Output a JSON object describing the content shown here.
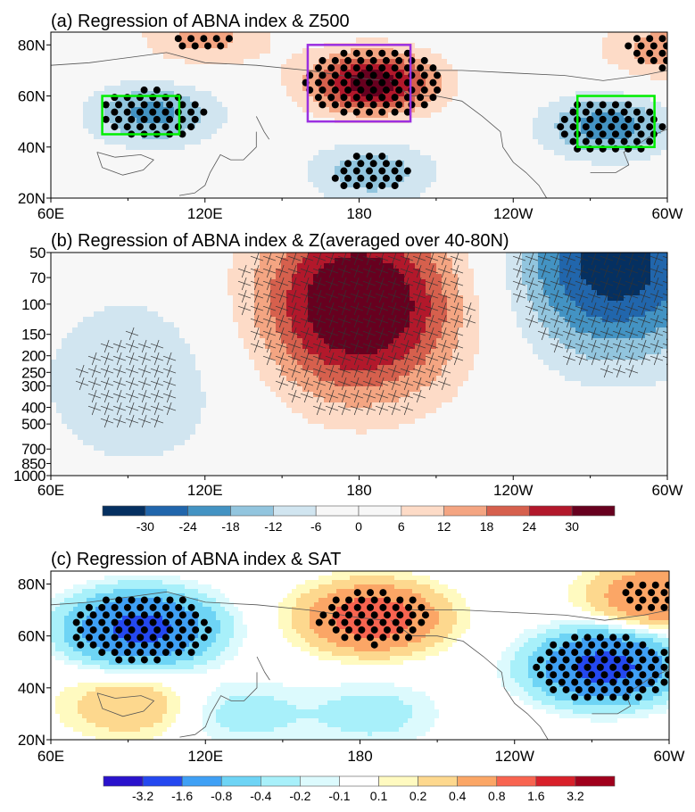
{
  "chart_data": [
    {
      "type": "heatmap",
      "panel": "a",
      "title": "(a) Regression of ABNA index & Z500",
      "xlabel": "",
      "ylabel": "",
      "x_ticks": [
        "60E",
        "120E",
        "180",
        "120W",
        "60W"
      ],
      "x_tick_values": [
        60,
        120,
        180,
        240,
        300
      ],
      "y_ticks": [
        "20N",
        "40N",
        "60N",
        "80N"
      ],
      "y_tick_values": [
        20,
        40,
        60,
        80
      ],
      "xlim": [
        60,
        300
      ],
      "ylim": [
        20,
        85
      ],
      "levels": [
        -30,
        -24,
        -18,
        -12,
        -6,
        0,
        6,
        12,
        18,
        24,
        30
      ],
      "anomaly_centers": [
        {
          "name": "Central Asia/Siberia low",
          "lon": 100,
          "lat": 53,
          "value": -20
        },
        {
          "name": "East Asia/N Pacific low",
          "lon": 185,
          "lat": 30,
          "value": -16
        },
        {
          "name": "Bering/Alaska high",
          "lon": 185,
          "lat": 65,
          "value": 34
        },
        {
          "name": "Arctic high",
          "lon": 120,
          "lat": 83,
          "value": 14
        },
        {
          "name": "North America low",
          "lon": 277,
          "lat": 48,
          "value": -22
        },
        {
          "name": "Greenland high",
          "lon": 300,
          "lat": 78,
          "value": 16
        }
      ],
      "boxes": [
        {
          "name": "green box Asia",
          "color": "#00ee00",
          "lon": [
            80,
            110
          ],
          "lat": [
            45,
            60
          ]
        },
        {
          "name": "purple box Pacific",
          "color": "#9b30e0",
          "lon": [
            160,
            200
          ],
          "lat": [
            50,
            80
          ]
        },
        {
          "name": "green box North America",
          "color": "#00ee00",
          "lon": [
            265,
            295
          ],
          "lat": [
            40,
            60
          ]
        }
      ],
      "significance": "stippled dots"
    },
    {
      "type": "heatmap",
      "panel": "b",
      "title": "(b) Regression of ABNA index & Z(averaged over 40-80N)",
      "x_ticks": [
        "60E",
        "120E",
        "180",
        "120W",
        "60W"
      ],
      "x_tick_values": [
        60,
        120,
        180,
        240,
        300
      ],
      "y_ticks": [
        "50",
        "70",
        "100",
        "150",
        "200",
        "250",
        "300",
        "400",
        "500",
        "700",
        "850",
        "1000"
      ],
      "y_tick_values": [
        50,
        70,
        100,
        150,
        200,
        250,
        300,
        400,
        500,
        700,
        850,
        1000
      ],
      "xlim": [
        60,
        300
      ],
      "ylim": [
        1000,
        50
      ],
      "y_scale": "log",
      "levels": [
        -30,
        -24,
        -18,
        -12,
        -6,
        0,
        6,
        12,
        18,
        24,
        30
      ],
      "anomaly_centers": [
        {
          "name": "Asia low",
          "lon": 93,
          "p": 280,
          "value": -12
        },
        {
          "name": "Pacific high",
          "lon": 180,
          "p": 100,
          "value": 40
        },
        {
          "name": "North America low",
          "lon": 280,
          "p": 60,
          "value": -34
        }
      ],
      "significance": "hatched"
    },
    {
      "type": "colorbar",
      "for_panels": [
        "a",
        "b"
      ],
      "tick_labels": [
        "-30",
        "-24",
        "-18",
        "-12",
        "-6",
        "0",
        "6",
        "12",
        "18",
        "24",
        "30"
      ],
      "colors": [
        "#053061",
        "#2166ac",
        "#4393c3",
        "#92c5de",
        "#d1e5f0",
        "#f7f7f7",
        "#f7f7f7",
        "#fddbc7",
        "#f4a582",
        "#d6604d",
        "#b2182b",
        "#67001f"
      ]
    },
    {
      "type": "heatmap",
      "panel": "c",
      "title": "(c) Regression of ABNA index & SAT",
      "x_ticks": [
        "60E",
        "120E",
        "180",
        "120W",
        "60W"
      ],
      "x_tick_values": [
        60,
        120,
        180,
        240,
        300
      ],
      "y_ticks": [
        "20N",
        "40N",
        "60N",
        "80N"
      ],
      "y_tick_values": [
        20,
        40,
        60,
        80
      ],
      "xlim": [
        60,
        300
      ],
      "ylim": [
        20,
        85
      ],
      "levels": [
        -3.2,
        -1.6,
        -0.8,
        -0.4,
        -0.2,
        -0.1,
        0.1,
        0.2,
        0.4,
        0.8,
        1.6,
        3.2
      ],
      "anomaly_centers": [
        {
          "name": "Siberia cold",
          "lon": 95,
          "lat": 63,
          "value": -2.0
        },
        {
          "name": "East Asia cool",
          "lon": 135,
          "lat": 30,
          "value": -0.3
        },
        {
          "name": "Bering/Alaska warm",
          "lon": 185,
          "lat": 67,
          "value": 1.2
        },
        {
          "name": "North Pacific cool",
          "lon": 185,
          "lat": 30,
          "value": -0.3
        },
        {
          "name": "North America cold",
          "lon": 275,
          "lat": 48,
          "value": -2.0
        },
        {
          "name": "Greenland warm",
          "lon": 295,
          "lat": 75,
          "value": 0.8
        },
        {
          "name": "Tibet warm",
          "lon": 90,
          "lat": 33,
          "value": 0.4
        }
      ],
      "significance": "stippled dots"
    },
    {
      "type": "colorbar",
      "for_panels": [
        "c"
      ],
      "tick_labels": [
        "-3.2",
        "-1.6",
        "-0.8",
        "-0.4",
        "-0.2",
        "-0.1",
        "0.1",
        "0.2",
        "0.4",
        "0.8",
        "1.6",
        "3.2"
      ],
      "colors": [
        "#2a12cc",
        "#2448f0",
        "#3fa0f5",
        "#6ed4f5",
        "#a8f0fa",
        "#dcfafd",
        "#ffffff",
        "#fffac0",
        "#fdd88e",
        "#fba666",
        "#f86450",
        "#d8202a",
        "#a0001c"
      ]
    }
  ]
}
